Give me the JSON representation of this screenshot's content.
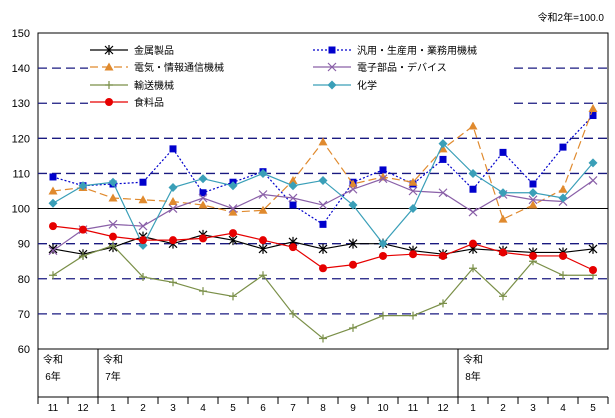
{
  "note": "令和2年=100.0",
  "chart_data": {
    "type": "line",
    "ylim": [
      60,
      150
    ],
    "yticks": [
      60,
      70,
      80,
      90,
      100,
      110,
      120,
      130,
      140,
      150
    ],
    "legend_placement": "top-left",
    "categories": [
      {
        "era": "令和",
        "year": "6年",
        "month": "11"
      },
      {
        "era": "",
        "year": "",
        "month": "12"
      },
      {
        "era": "令和",
        "year": "7年",
        "month": "1"
      },
      {
        "era": "",
        "year": "",
        "month": "2"
      },
      {
        "era": "",
        "year": "",
        "month": "3"
      },
      {
        "era": "",
        "year": "",
        "month": "4"
      },
      {
        "era": "",
        "year": "",
        "month": "5"
      },
      {
        "era": "",
        "year": "",
        "month": "6"
      },
      {
        "era": "",
        "year": "",
        "month": "7"
      },
      {
        "era": "",
        "year": "",
        "month": "8"
      },
      {
        "era": "",
        "year": "",
        "month": "9"
      },
      {
        "era": "",
        "year": "",
        "month": "10"
      },
      {
        "era": "",
        "year": "",
        "month": "11"
      },
      {
        "era": "",
        "year": "",
        "month": "12"
      },
      {
        "era": "令和",
        "year": "8年",
        "month": "1"
      },
      {
        "era": "",
        "year": "",
        "month": "2"
      },
      {
        "era": "",
        "year": "",
        "month": "3"
      },
      {
        "era": "",
        "year": "",
        "month": "4"
      },
      {
        "era": "",
        "year": "",
        "month": "5"
      }
    ],
    "series": [
      {
        "name": "金属製品",
        "color": "#000000",
        "dash": "solid",
        "marker": "star",
        "values": [
          88.5,
          87.0,
          89.0,
          92.0,
          90.0,
          92.5,
          91.0,
          88.5,
          90.5,
          88.5,
          90.0,
          90.0,
          88.0,
          87.0,
          88.5,
          88.0,
          87.5,
          87.5,
          88.5
        ]
      },
      {
        "name": "汎用・生産用・業務用機械",
        "color": "#0000CC",
        "dash": "dotted",
        "marker": "square",
        "values": [
          109.0,
          106.5,
          107.0,
          107.5,
          117.0,
          104.5,
          107.5,
          110.5,
          101.0,
          95.5,
          107.5,
          111.0,
          107.0,
          114.0,
          105.5,
          116.0,
          107.0,
          117.5,
          126.5
        ]
      },
      {
        "name": "電気・情報通信機械",
        "color": "#E08A2E",
        "dash": "dashed",
        "marker": "triangle",
        "values": [
          105.0,
          106.0,
          103.0,
          102.5,
          102.0,
          101.0,
          99.0,
          99.5,
          108.0,
          119.0,
          107.0,
          109.0,
          107.5,
          117.0,
          123.5,
          97.0,
          101.0,
          105.5,
          128.5
        ]
      },
      {
        "name": "電子部品・デバイス",
        "color": "#8A60A8",
        "dash": "solid",
        "marker": "x",
        "values": [
          88.0,
          94.0,
          95.5,
          95.0,
          100.0,
          103.0,
          100.0,
          104.0,
          103.0,
          101.0,
          105.5,
          108.5,
          105.0,
          104.5,
          99.0,
          104.0,
          102.5,
          102.0,
          108.0
        ]
      },
      {
        "name": "輸送機械",
        "color": "#7A8F48",
        "dash": "solid",
        "marker": "plus",
        "values": [
          81.0,
          86.5,
          89.5,
          80.5,
          79.0,
          76.5,
          75.0,
          81.0,
          70.0,
          63.0,
          66.0,
          69.5,
          69.5,
          73.0,
          83.0,
          75.0,
          85.0,
          81.0,
          81.0
        ]
      },
      {
        "name": "化学",
        "color": "#3A9FB8",
        "dash": "solid",
        "marker": "diamond",
        "values": [
          101.5,
          106.5,
          107.5,
          89.5,
          106.0,
          108.5,
          106.5,
          110.0,
          106.5,
          108.0,
          101.0,
          90.0,
          100.0,
          118.5,
          110.0,
          104.5,
          104.5,
          103.0,
          113.0
        ]
      },
      {
        "name": "食料品",
        "color": "#E60000",
        "dash": "solid",
        "marker": "circle",
        "values": [
          95.0,
          94.0,
          92.0,
          91.0,
          91.0,
          91.5,
          93.0,
          91.0,
          89.0,
          83.0,
          84.0,
          86.5,
          87.0,
          86.5,
          90.0,
          87.5,
          86.5,
          86.5,
          82.5
        ]
      }
    ],
    "legend": {
      "columns": [
        [
          "金属製品",
          "電気・情報通信機械",
          "輸送機械",
          "食料品"
        ],
        [
          "汎用・生産用・業務用機械",
          "電子部品・デバイス",
          "化学"
        ]
      ]
    }
  }
}
